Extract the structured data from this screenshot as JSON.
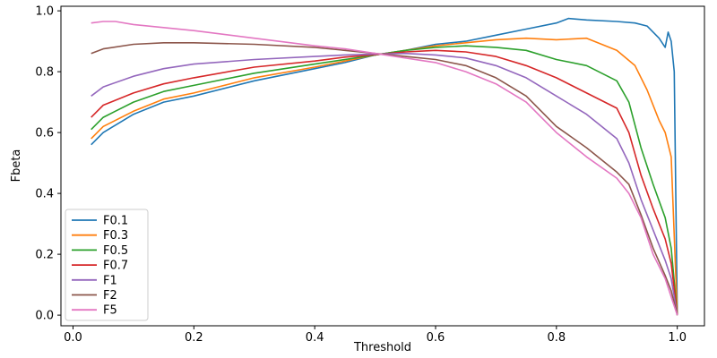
{
  "chart_data": {
    "type": "line",
    "title": "",
    "xlabel": "Threshold",
    "ylabel": "Fbeta",
    "xlim": [
      -0.02,
      1.045
    ],
    "ylim": [
      -0.035,
      1.015
    ],
    "xticks": [
      0.0,
      0.2,
      0.4,
      0.6,
      0.8,
      1.0
    ],
    "xtick_labels": [
      "0.0",
      "0.2",
      "0.4",
      "0.6",
      "0.8",
      "1.0"
    ],
    "yticks": [
      0.0,
      0.2,
      0.4,
      0.6,
      0.8,
      1.0
    ],
    "ytick_labels": [
      "0.0",
      "0.2",
      "0.4",
      "0.6",
      "0.8",
      "1.0"
    ],
    "grid": false,
    "legend_position": "lower-left",
    "series": [
      {
        "name": "F0.1",
        "color": "#1f77b4",
        "x": [
          0.03,
          0.05,
          0.1,
          0.15,
          0.2,
          0.3,
          0.4,
          0.45,
          0.5,
          0.55,
          0.6,
          0.65,
          0.7,
          0.75,
          0.8,
          0.82,
          0.85,
          0.9,
          0.93,
          0.95,
          0.97,
          0.98,
          0.985,
          0.99,
          0.995,
          1.0
        ],
        "y": [
          0.56,
          0.6,
          0.66,
          0.7,
          0.72,
          0.77,
          0.81,
          0.83,
          0.855,
          0.87,
          0.89,
          0.9,
          0.92,
          0.94,
          0.96,
          0.975,
          0.97,
          0.965,
          0.96,
          0.95,
          0.91,
          0.88,
          0.93,
          0.9,
          0.8,
          0.0
        ]
      },
      {
        "name": "F0.3",
        "color": "#ff7f0e",
        "x": [
          0.03,
          0.05,
          0.1,
          0.15,
          0.2,
          0.3,
          0.4,
          0.45,
          0.5,
          0.55,
          0.6,
          0.65,
          0.7,
          0.75,
          0.8,
          0.85,
          0.9,
          0.93,
          0.95,
          0.97,
          0.98,
          0.99,
          1.0
        ],
        "y": [
          0.58,
          0.62,
          0.67,
          0.71,
          0.73,
          0.78,
          0.815,
          0.835,
          0.855,
          0.87,
          0.885,
          0.895,
          0.905,
          0.91,
          0.905,
          0.91,
          0.87,
          0.82,
          0.74,
          0.64,
          0.6,
          0.52,
          0.0
        ]
      },
      {
        "name": "F0.5",
        "color": "#2ca02c",
        "x": [
          0.03,
          0.05,
          0.1,
          0.15,
          0.2,
          0.3,
          0.4,
          0.45,
          0.5,
          0.55,
          0.6,
          0.65,
          0.7,
          0.75,
          0.8,
          0.85,
          0.9,
          0.92,
          0.94,
          0.96,
          0.98,
          0.99,
          1.0
        ],
        "y": [
          0.61,
          0.65,
          0.7,
          0.735,
          0.755,
          0.795,
          0.825,
          0.84,
          0.855,
          0.87,
          0.88,
          0.885,
          0.88,
          0.87,
          0.84,
          0.82,
          0.77,
          0.7,
          0.55,
          0.43,
          0.32,
          0.22,
          0.0
        ]
      },
      {
        "name": "F0.7",
        "color": "#d62728",
        "x": [
          0.03,
          0.05,
          0.1,
          0.15,
          0.2,
          0.3,
          0.4,
          0.45,
          0.5,
          0.55,
          0.6,
          0.65,
          0.7,
          0.75,
          0.8,
          0.85,
          0.9,
          0.92,
          0.94,
          0.96,
          0.98,
          0.99,
          1.0
        ],
        "y": [
          0.65,
          0.69,
          0.73,
          0.76,
          0.78,
          0.815,
          0.835,
          0.848,
          0.856,
          0.865,
          0.87,
          0.865,
          0.85,
          0.82,
          0.78,
          0.73,
          0.68,
          0.6,
          0.46,
          0.35,
          0.25,
          0.17,
          0.0
        ]
      },
      {
        "name": "F1",
        "color": "#9467bd",
        "x": [
          0.03,
          0.05,
          0.1,
          0.15,
          0.2,
          0.3,
          0.4,
          0.45,
          0.5,
          0.55,
          0.6,
          0.65,
          0.7,
          0.75,
          0.8,
          0.85,
          0.9,
          0.92,
          0.94,
          0.96,
          0.98,
          0.99,
          1.0
        ],
        "y": [
          0.72,
          0.75,
          0.785,
          0.81,
          0.825,
          0.84,
          0.85,
          0.855,
          0.858,
          0.86,
          0.855,
          0.845,
          0.82,
          0.78,
          0.72,
          0.66,
          0.58,
          0.5,
          0.38,
          0.28,
          0.18,
          0.12,
          0.0
        ]
      },
      {
        "name": "F2",
        "color": "#8c564b",
        "x": [
          0.03,
          0.05,
          0.1,
          0.15,
          0.2,
          0.3,
          0.4,
          0.45,
          0.5,
          0.55,
          0.6,
          0.65,
          0.7,
          0.75,
          0.8,
          0.85,
          0.9,
          0.92,
          0.94,
          0.96,
          0.98,
          0.99,
          1.0
        ],
        "y": [
          0.86,
          0.875,
          0.89,
          0.895,
          0.895,
          0.89,
          0.88,
          0.87,
          0.86,
          0.85,
          0.84,
          0.82,
          0.78,
          0.72,
          0.62,
          0.55,
          0.47,
          0.43,
          0.33,
          0.22,
          0.13,
          0.08,
          0.0
        ]
      },
      {
        "name": "F5",
        "color": "#e377c2",
        "x": [
          0.03,
          0.05,
          0.07,
          0.1,
          0.15,
          0.2,
          0.3,
          0.4,
          0.45,
          0.5,
          0.55,
          0.6,
          0.65,
          0.7,
          0.75,
          0.8,
          0.85,
          0.9,
          0.92,
          0.94,
          0.96,
          0.98,
          0.99,
          1.0
        ],
        "y": [
          0.96,
          0.965,
          0.965,
          0.955,
          0.945,
          0.935,
          0.91,
          0.885,
          0.875,
          0.86,
          0.845,
          0.83,
          0.8,
          0.76,
          0.7,
          0.6,
          0.52,
          0.45,
          0.4,
          0.32,
          0.2,
          0.12,
          0.06,
          0.0
        ]
      }
    ]
  }
}
